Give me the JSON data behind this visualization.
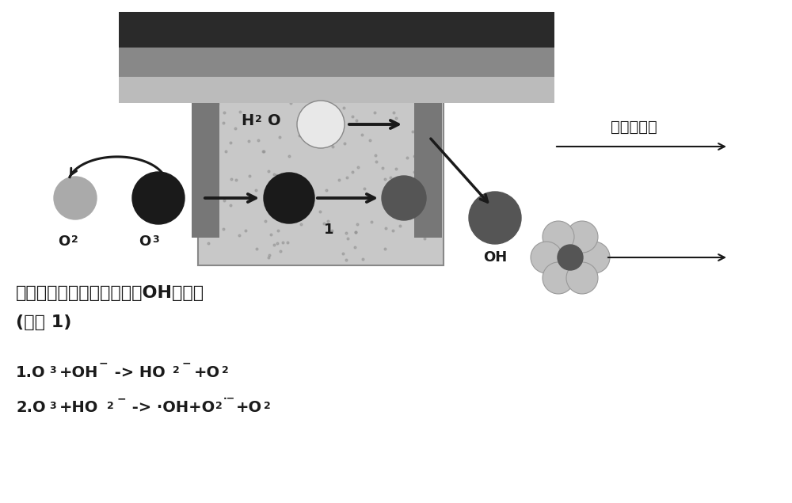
{
  "bg_color": "#ffffff",
  "top_bar_dark": "#2a2a2a",
  "top_bar_mid": "#888888",
  "top_bar_light": "#bbbbbb",
  "porous_box_color": "#c8c8c8",
  "porous_box_edge": "#888888",
  "circle_black": "#1a1a1a",
  "circle_dark_gray": "#555555",
  "circle_light_gray": "#aaaaaa",
  "circle_white": "#e8e8e8",
  "arrow_color": "#1a1a1a",
  "text_color": "#1a1a1a",
  "label_OH": "OH",
  "label_1": "1",
  "label_exhaust": "排出到大气",
  "title_line1": "水中臭氧分解的过程中生成OH自由基",
  "title_line2": "(反应 1)",
  "eq1_prefix": "1.O",
  "eq1_mid": "+OH",
  "eq1_suffix": " -> HO",
  "eq1_end": "+O",
  "eq2_prefix": "2.O",
  "eq2_mid": "+HO",
  "eq2_suffix": " -> ·OH+O",
  "eq2_end": "+O",
  "label_O2": "O",
  "label_O3": "O",
  "label_H2O": "H",
  "sub2": "2",
  "sub3": "3"
}
